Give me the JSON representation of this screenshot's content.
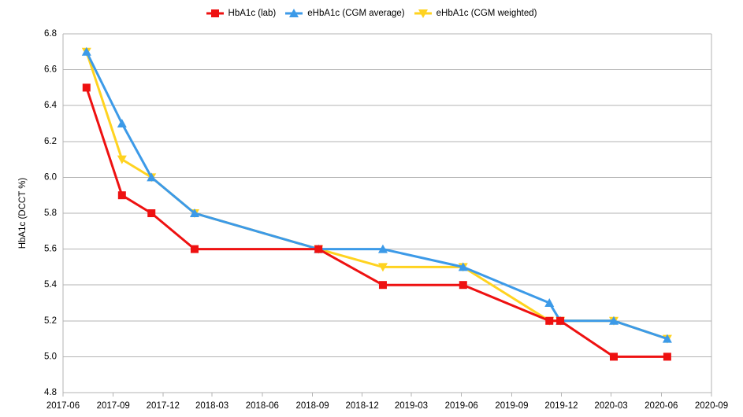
{
  "chart_data": {
    "type": "line",
    "ylabel": "HbA1c (DCCT %)",
    "x": [
      "2017-07-14",
      "2017-09-17",
      "2017-11-10",
      "2018-01-28",
      "2018-09-12",
      "2019-01-08",
      "2019-06-04",
      "2019-11-09",
      "2019-11-29",
      "2020-03-06",
      "2020-06-12"
    ],
    "series": [
      {
        "name": "HbA1c (lab)",
        "color": "#ee1111",
        "marker": "square",
        "values": [
          6.5,
          5.9,
          5.8,
          5.6,
          5.6,
          5.4,
          5.4,
          5.2,
          5.2,
          5.0,
          5.0
        ]
      },
      {
        "name": "eHbA1c (CGM average)",
        "color": "#3c9ae8",
        "marker": "triangle-up",
        "values": [
          6.7,
          6.3,
          6.0,
          5.8,
          5.6,
          5.6,
          5.5,
          5.3,
          5.2,
          5.2,
          5.1
        ]
      },
      {
        "name": "eHbA1c (CGM weighted)",
        "color": "#ffd320",
        "marker": "triangle-down",
        "values": [
          6.7,
          6.1,
          6.0,
          5.8,
          5.6,
          5.5,
          5.5,
          5.2,
          5.2,
          5.2,
          5.1
        ]
      }
    ],
    "xlim": [
      "2017-06-01",
      "2020-09-01"
    ],
    "ylim": [
      4.8,
      6.8
    ],
    "x_ticks": [
      "2017-06",
      "2017-09",
      "2017-12",
      "2018-03",
      "2018-06",
      "2018-09",
      "2018-12",
      "2019-03",
      "2019-06",
      "2019-09",
      "2019-12",
      "2020-03",
      "2020-06",
      "2020-09"
    ],
    "y_ticks": [
      "4.8",
      "5.0",
      "5.2",
      "5.4",
      "5.6",
      "5.8",
      "6.0",
      "6.2",
      "6.4",
      "6.6",
      "6.8"
    ],
    "grid": "horizontal",
    "legend": "top",
    "grid_color": "#b3b3b3"
  }
}
